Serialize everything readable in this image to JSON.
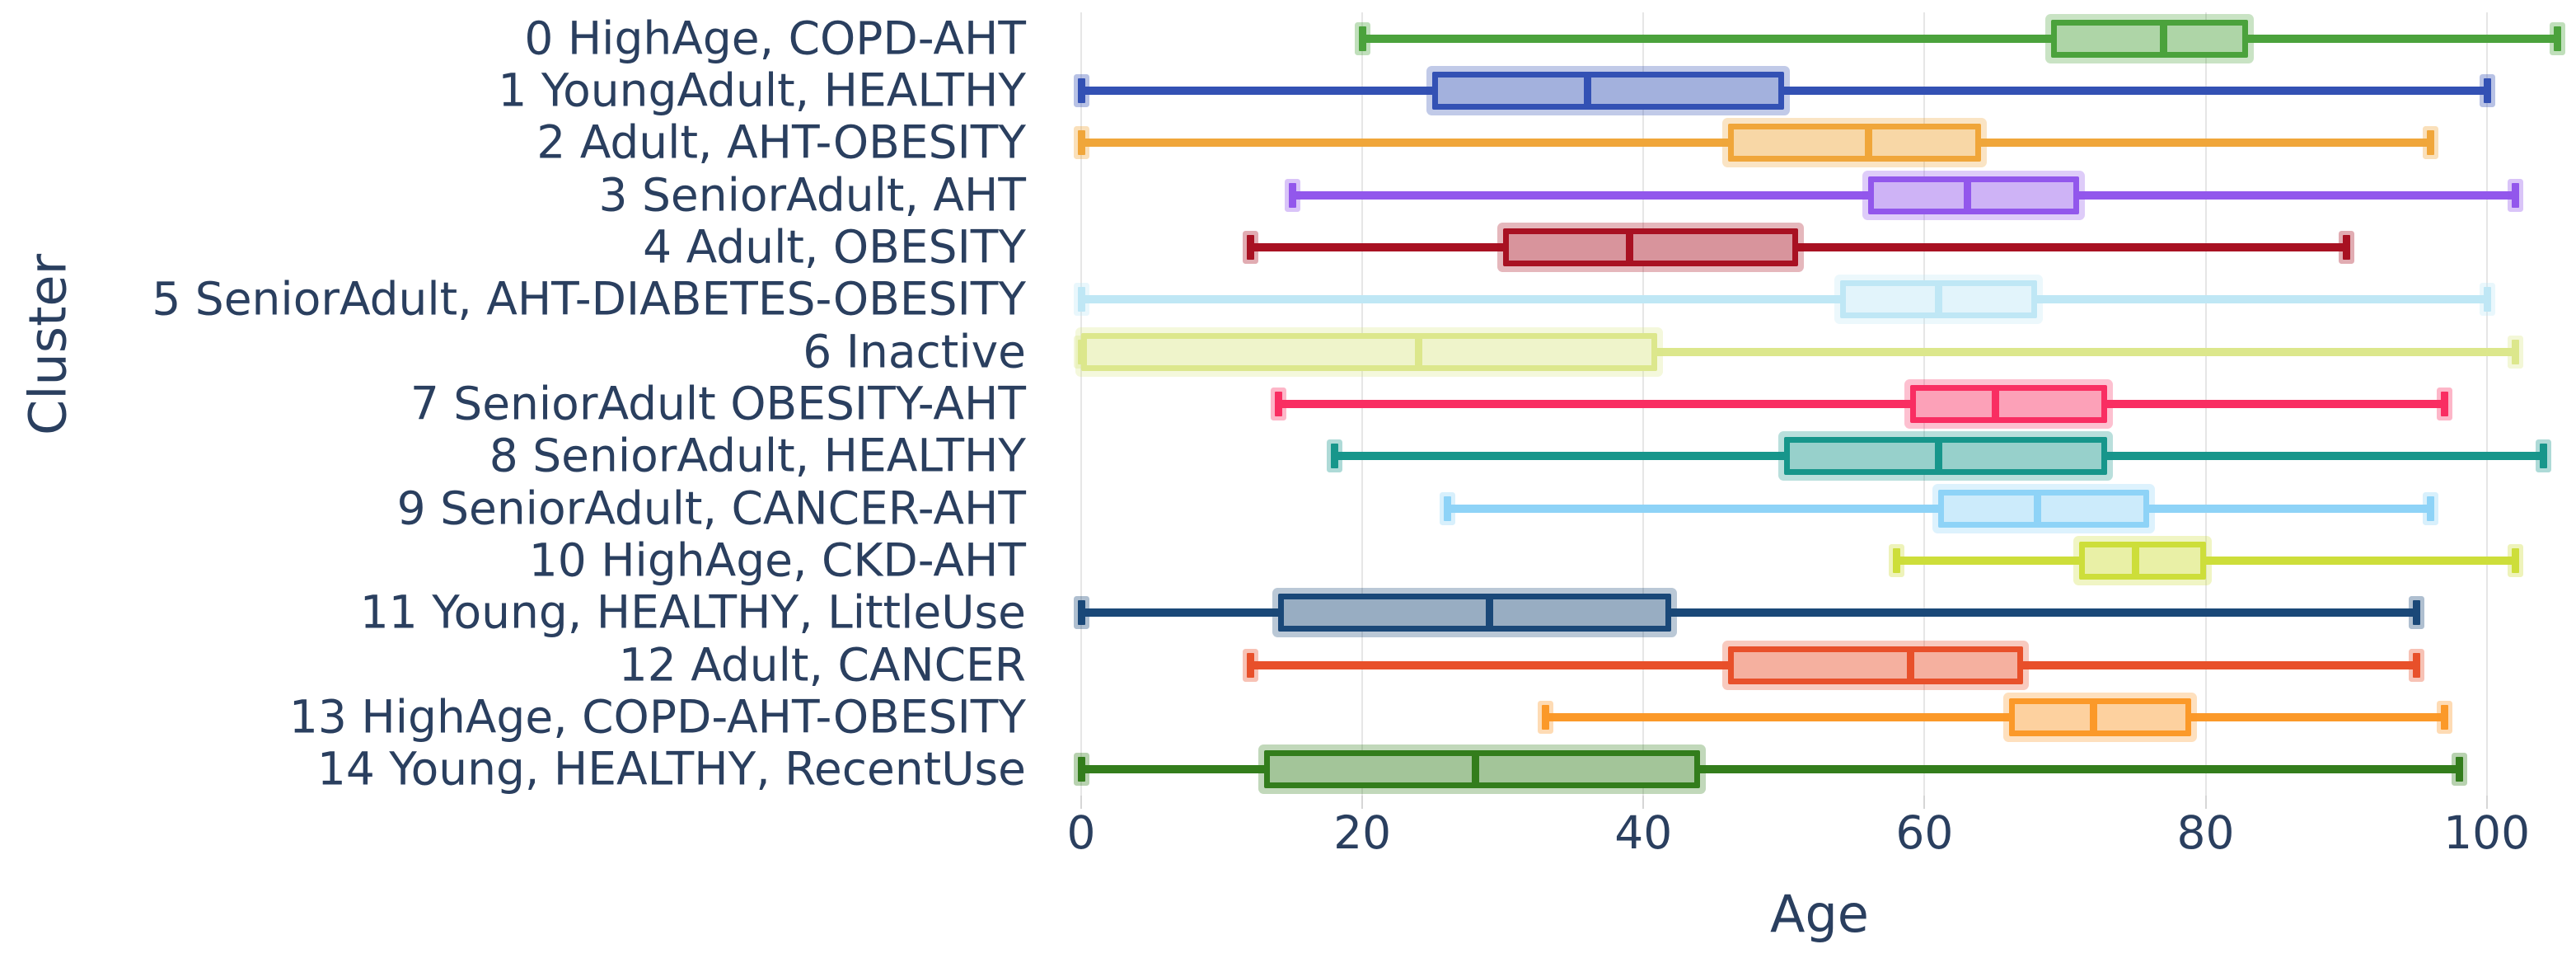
{
  "figure": {
    "x_axis_title": "Age",
    "y_axis_title": "Cluster",
    "text_color": "#2a3f5f",
    "grid_color": "#e6e6e6",
    "background": "#ffffff"
  },
  "chart_data": {
    "type": "box",
    "orientation": "horizontal",
    "title": "",
    "xlabel": "Age",
    "ylabel": "Cluster",
    "x_ticks": [
      0,
      20,
      40,
      60,
      80,
      100
    ],
    "x_range": [
      -1,
      106
    ],
    "grid": true,
    "legend": false,
    "series": [
      {
        "label": "0 HighAge, COPD-AHT",
        "color": "#4ba23c",
        "whisker_low": 20,
        "q1": 69,
        "median": 77,
        "q3": 83,
        "whisker_high": 105
      },
      {
        "label": "1 YoungAdult, HEALTHY",
        "color": "#3351b4",
        "whisker_low": 0,
        "q1": 25,
        "median": 36,
        "q3": 50,
        "whisker_high": 100
      },
      {
        "label": "2 Adult, AHT-OBESITY",
        "color": "#f0a63a",
        "whisker_low": 0,
        "q1": 46,
        "median": 56,
        "q3": 64,
        "whisker_high": 96
      },
      {
        "label": "3 SeniorAdult, AHT",
        "color": "#9257ec",
        "whisker_low": 15,
        "q1": 56,
        "median": 63,
        "q3": 71,
        "whisker_high": 102
      },
      {
        "label": "4 Adult, OBESITY",
        "color": "#a81122",
        "whisker_low": 12,
        "q1": 30,
        "median": 39,
        "q3": 51,
        "whisker_high": 90
      },
      {
        "label": "5 SeniorAdult, AHT-DIABETES-OBESITY",
        "color": "#bfe7f5",
        "whisker_low": 0,
        "q1": 54,
        "median": 61,
        "q3": 68,
        "whisker_high": 100
      },
      {
        "label": "6 Inactive",
        "color": "#dce78c",
        "whisker_low": 0,
        "q1": 0,
        "median": 24,
        "q3": 41,
        "whisker_high": 102
      },
      {
        "label": "7 SeniorAdult OBESITY-AHT",
        "color": "#f92e62",
        "whisker_low": 14,
        "q1": 59,
        "median": 65,
        "q3": 73,
        "whisker_high": 97
      },
      {
        "label": "8 SeniorAdult, HEALTHY",
        "color": "#17968b",
        "whisker_low": 18,
        "q1": 50,
        "median": 61,
        "q3": 73,
        "whisker_high": 104
      },
      {
        "label": "9 SeniorAdult, CANCER-AHT",
        "color": "#8ed3f7",
        "whisker_low": 26,
        "q1": 61,
        "median": 68,
        "q3": 76,
        "whisker_high": 96
      },
      {
        "label": "10 HighAge, CKD-AHT",
        "color": "#cdde3a",
        "whisker_low": 58,
        "q1": 71,
        "median": 75,
        "q3": 80,
        "whisker_high": 102
      },
      {
        "label": "11 Young, HEALTHY, LittleUse",
        "color": "#1a4878",
        "whisker_low": 0,
        "q1": 14,
        "median": 29,
        "q3": 42,
        "whisker_high": 95
      },
      {
        "label": "12 Adult, CANCER",
        "color": "#e8502a",
        "whisker_low": 12,
        "q1": 46,
        "median": 59,
        "q3": 67,
        "whisker_high": 95
      },
      {
        "label": "13 HighAge, COPD-AHT-OBESITY",
        "color": "#fb9929",
        "whisker_low": 33,
        "q1": 66,
        "median": 72,
        "q3": 79,
        "whisker_high": 97
      },
      {
        "label": "14 Young, HEALTHY, RecentUse",
        "color": "#337d1c",
        "whisker_low": 0,
        "q1": 13,
        "median": 28,
        "q3": 44,
        "whisker_high": 98
      }
    ]
  }
}
